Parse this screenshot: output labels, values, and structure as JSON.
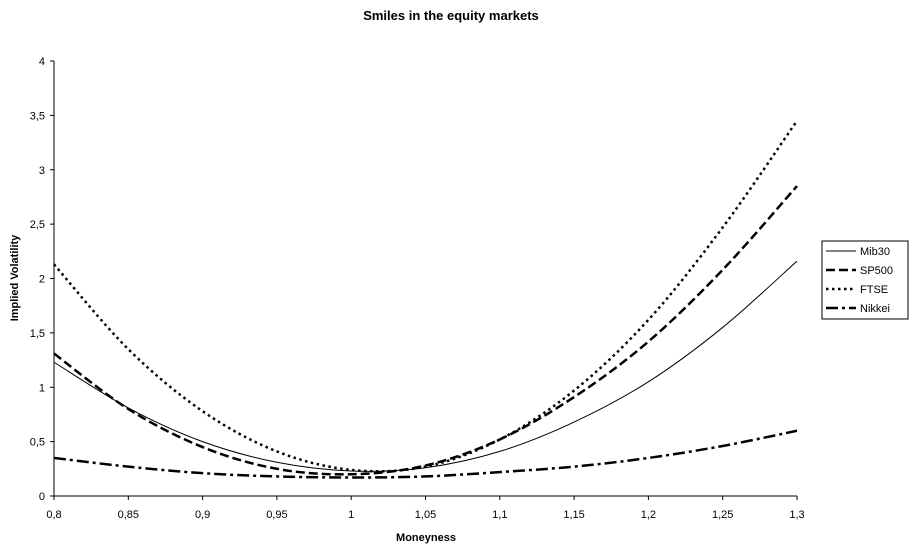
{
  "chart_data": {
    "type": "line",
    "title": "Smiles in the equity markets",
    "xlabel": "Moneyness",
    "ylabel": "Implied Volatility",
    "xlim": [
      0.8,
      1.3
    ],
    "ylim": [
      0,
      4
    ],
    "x_ticks": [
      0.8,
      0.85,
      0.9,
      0.95,
      1,
      1.05,
      1.1,
      1.15,
      1.2,
      1.25,
      1.3
    ],
    "x_tick_labels": [
      "0,8",
      "0,85",
      "0,9",
      "0,95",
      "1",
      "1,05",
      "1,1",
      "1,15",
      "1,2",
      "1,25",
      "1,3"
    ],
    "y_ticks": [
      0,
      0.5,
      1,
      1.5,
      2,
      2.5,
      3,
      3.5,
      4
    ],
    "y_tick_labels": [
      "0",
      "0,5",
      "1",
      "1,5",
      "2",
      "2,5",
      "3",
      "3,5",
      "4"
    ],
    "grid": false,
    "legend_position": "right",
    "x": [
      0.8,
      0.85,
      0.9,
      0.95,
      1.0,
      1.05,
      1.1,
      1.15,
      1.2,
      1.25,
      1.3
    ],
    "series": [
      {
        "name": "Mib30",
        "dash": "solid",
        "color": "#000000",
        "values": [
          1.23,
          0.81,
          0.5,
          0.31,
          0.23,
          0.26,
          0.41,
          0.68,
          1.05,
          1.55,
          2.16
        ]
      },
      {
        "name": "SP500",
        "dash": "dashed",
        "color": "#000000",
        "values": [
          1.31,
          0.8,
          0.45,
          0.25,
          0.2,
          0.28,
          0.52,
          0.91,
          1.42,
          2.08,
          2.85
        ]
      },
      {
        "name": "FTSE",
        "dash": "dotted",
        "color": "#000000",
        "values": [
          2.13,
          1.35,
          0.78,
          0.41,
          0.24,
          0.27,
          0.52,
          0.97,
          1.62,
          2.47,
          3.45
        ]
      },
      {
        "name": "Nikkei",
        "dash": "dashdot",
        "color": "#000000",
        "values": [
          0.35,
          0.27,
          0.21,
          0.18,
          0.17,
          0.18,
          0.22,
          0.27,
          0.35,
          0.46,
          0.6
        ]
      }
    ]
  }
}
